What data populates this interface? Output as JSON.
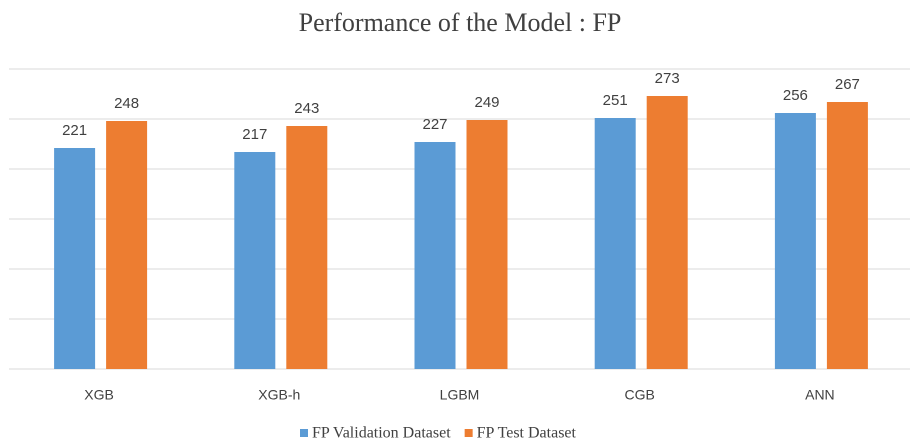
{
  "chart_data": {
    "type": "bar",
    "title": "Performance of the Model : FP",
    "categories": [
      "XGB",
      "XGB-h",
      "LGBM",
      "CGB",
      "ANN"
    ],
    "series": [
      {
        "name": "FP Validation Dataset",
        "color": "#5b9bd5",
        "values": [
          221,
          217,
          227,
          251,
          256
        ]
      },
      {
        "name": "FP Test Dataset",
        "color": "#ed7d31",
        "values": [
          248,
          243,
          249,
          273,
          267
        ]
      }
    ],
    "ylim": [
      0,
      300
    ],
    "yticks": [
      0,
      50,
      100,
      150,
      200,
      250,
      300
    ],
    "grid": true,
    "legend": "bottom"
  }
}
